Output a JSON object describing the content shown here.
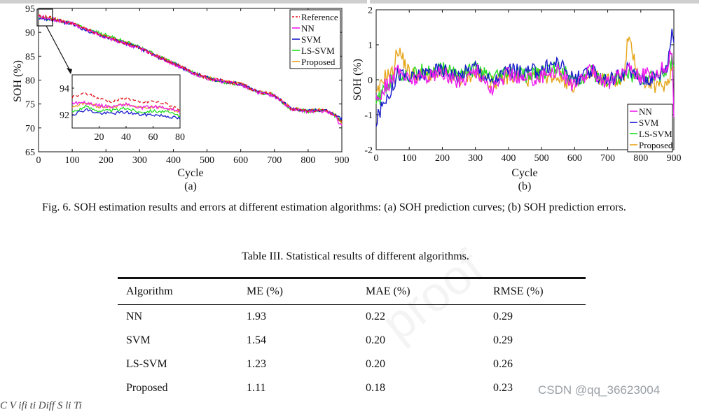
{
  "colors": {
    "reference": "#e0141c",
    "nn": "#ee1aee",
    "svm": "#1a1acc",
    "lssvm": "#22dd22",
    "proposed": "#e6a61c"
  },
  "figure_a": {
    "label": "(a)",
    "xlabel": "Cycle",
    "ylabel": "SOH (%)",
    "legend": [
      "Reference",
      "NN",
      "SVM",
      "LS-SVM",
      "Proposed"
    ],
    "x_ticks": [
      "0",
      "100",
      "200",
      "300",
      "400",
      "500",
      "600",
      "700",
      "800",
      "900"
    ],
    "y_ticks": [
      "65",
      "70",
      "75",
      "80",
      "85",
      "90",
      "95"
    ],
    "inset": {
      "x_ticks": [
        "20",
        "40",
        "60",
        "80"
      ],
      "y_ticks": [
        "94",
        "92"
      ]
    }
  },
  "figure_b": {
    "label": "(b)",
    "xlabel": "Cycle",
    "ylabel": "SOH (%)",
    "legend": [
      "NN",
      "SVM",
      "LS-SVM",
      "Proposed"
    ],
    "x_ticks": [
      "0",
      "100",
      "200",
      "300",
      "400",
      "500",
      "600",
      "700",
      "800",
      "900"
    ],
    "y_ticks": [
      "-2",
      "-1",
      "0",
      "1",
      "2"
    ]
  },
  "chart_data": [
    {
      "type": "line",
      "title": "SOH prediction curves",
      "xlabel": "Cycle",
      "ylabel": "SOH (%)",
      "xlim": [
        0,
        900
      ],
      "ylim": [
        65,
        95
      ],
      "x": [
        0,
        50,
        100,
        150,
        200,
        250,
        300,
        350,
        400,
        450,
        500,
        550,
        600,
        650,
        700,
        750,
        800,
        850,
        880,
        900
      ],
      "series": [
        {
          "name": "Reference",
          "values": [
            93.5,
            92.8,
            91.9,
            90.4,
            89.1,
            88.0,
            86.8,
            85.1,
            83.5,
            81.8,
            80.5,
            79.7,
            79.2,
            77.6,
            76.9,
            74.0,
            73.6,
            73.8,
            72.8,
            71.0
          ]
        },
        {
          "name": "NN",
          "values": [
            93.3,
            92.6,
            91.8,
            90.3,
            89.0,
            87.8,
            86.6,
            85.0,
            83.4,
            81.6,
            80.4,
            79.6,
            79.1,
            77.4,
            76.7,
            73.9,
            73.4,
            73.6,
            72.4,
            70.2
          ]
        },
        {
          "name": "SVM",
          "values": [
            93.0,
            92.5,
            91.7,
            90.2,
            89.0,
            87.9,
            86.7,
            85.0,
            83.5,
            81.7,
            80.5,
            79.7,
            79.2,
            77.5,
            76.8,
            74.0,
            73.5,
            73.8,
            72.7,
            71.8
          ]
        },
        {
          "name": "LS-SVM",
          "values": [
            93.1,
            92.6,
            91.9,
            90.5,
            89.4,
            88.2,
            86.9,
            85.2,
            83.6,
            81.8,
            80.4,
            79.6,
            79.1,
            77.5,
            76.8,
            73.9,
            73.5,
            73.7,
            72.6,
            71.5
          ]
        },
        {
          "name": "Proposed",
          "values": [
            93.2,
            92.7,
            91.9,
            90.4,
            89.2,
            88.0,
            86.8,
            85.1,
            83.5,
            81.8,
            80.5,
            79.7,
            79.2,
            77.6,
            76.9,
            74.0,
            73.6,
            73.8,
            72.8,
            71.0
          ]
        }
      ],
      "inset": {
        "xlim": [
          0,
          80
        ],
        "ylim": [
          91,
          95
        ],
        "x": [
          0,
          10,
          20,
          30,
          40,
          50,
          60,
          70,
          80
        ],
        "series": [
          {
            "name": "Reference",
            "values": [
              93.3,
              93.6,
              93.2,
              93.0,
              93.3,
              92.9,
              93.0,
              92.8,
              92.4
            ]
          },
          {
            "name": "NN",
            "values": [
              92.9,
              92.9,
              92.7,
              92.6,
              92.8,
              92.5,
              92.6,
              92.5,
              92.2
            ]
          },
          {
            "name": "SVM",
            "values": [
              92.0,
              92.4,
              92.1,
              92.1,
              92.2,
              92.0,
              92.0,
              91.9,
              91.7
            ]
          },
          {
            "name": "LS-SVM",
            "values": [
              92.2,
              92.6,
              92.3,
              92.3,
              92.5,
              92.2,
              92.3,
              92.2,
              91.9
            ]
          },
          {
            "name": "Proposed",
            "values": [
              92.6,
              92.9,
              92.6,
              92.6,
              92.8,
              92.5,
              92.6,
              92.5,
              92.2
            ]
          }
        ]
      }
    },
    {
      "type": "line",
      "title": "SOH prediction errors",
      "xlabel": "Cycle",
      "ylabel": "SOH (%)",
      "xlim": [
        0,
        900
      ],
      "ylim": [
        -2,
        2
      ],
      "x": [
        0,
        25,
        50,
        65,
        100,
        150,
        200,
        250,
        300,
        350,
        400,
        450,
        500,
        550,
        600,
        650,
        700,
        750,
        760,
        800,
        850,
        880,
        895,
        900
      ],
      "series": [
        {
          "name": "NN",
          "values": [
            -0.6,
            -0.2,
            0.0,
            0.3,
            0.0,
            0.1,
            0.2,
            -0.1,
            0.3,
            -0.3,
            0.2,
            0.0,
            0.1,
            0.3,
            -0.2,
            0.3,
            -0.1,
            0.2,
            0.4,
            0.1,
            0.2,
            0.4,
            0.9,
            -1.0
          ]
        },
        {
          "name": "SVM",
          "values": [
            -1.2,
            -0.6,
            -0.2,
            0.2,
            0.0,
            0.2,
            0.3,
            0.1,
            0.4,
            -0.1,
            0.3,
            0.2,
            0.3,
            0.5,
            0.0,
            0.2,
            0.0,
            0.2,
            0.3,
            0.0,
            0.1,
            0.4,
            1.5,
            1.1
          ]
        },
        {
          "name": "LS-SVM",
          "values": [
            -0.7,
            -0.3,
            0.0,
            0.2,
            0.1,
            0.3,
            0.3,
            0.2,
            0.3,
            0.0,
            0.2,
            0.1,
            0.2,
            0.4,
            -0.1,
            0.2,
            0.0,
            0.1,
            0.2,
            0.0,
            0.1,
            0.3,
            0.6,
            0.4
          ]
        },
        {
          "name": "Proposed",
          "values": [
            -0.5,
            0.1,
            0.2,
            0.9,
            0.2,
            0.1,
            0.2,
            0.0,
            0.2,
            -0.1,
            0.1,
            0.0,
            0.1,
            0.1,
            -0.2,
            0.1,
            0.0,
            0.0,
            1.2,
            0.0,
            -0.2,
            -0.1,
            0.4,
            0.3
          ]
        }
      ]
    }
  ],
  "caption": "Fig. 6. SOH estimation results and errors at different estimation algorithms: (a) SOH prediction curves; (b) SOH prediction errors.",
  "table": {
    "caption": "Table III. Statistical results of different algorithms.",
    "headers": [
      "Algorithm",
      "ME (%)",
      "MAE (%)",
      "RMSE (%)"
    ],
    "rows": [
      [
        "NN",
        "1.93",
        "0.22",
        "0.29"
      ],
      [
        "SVM",
        "1.54",
        "0.20",
        "0.29"
      ],
      [
        "LS-SVM",
        "1.23",
        "0.20",
        "0.26"
      ],
      [
        "Proposed",
        "1.11",
        "0.18",
        "0.23"
      ]
    ]
  },
  "watermark": "CSDN @qq_36623004",
  "background_watermark": "proof",
  "bottom_text": "C    V   ifi   ti          Diff        S    li    Ti"
}
